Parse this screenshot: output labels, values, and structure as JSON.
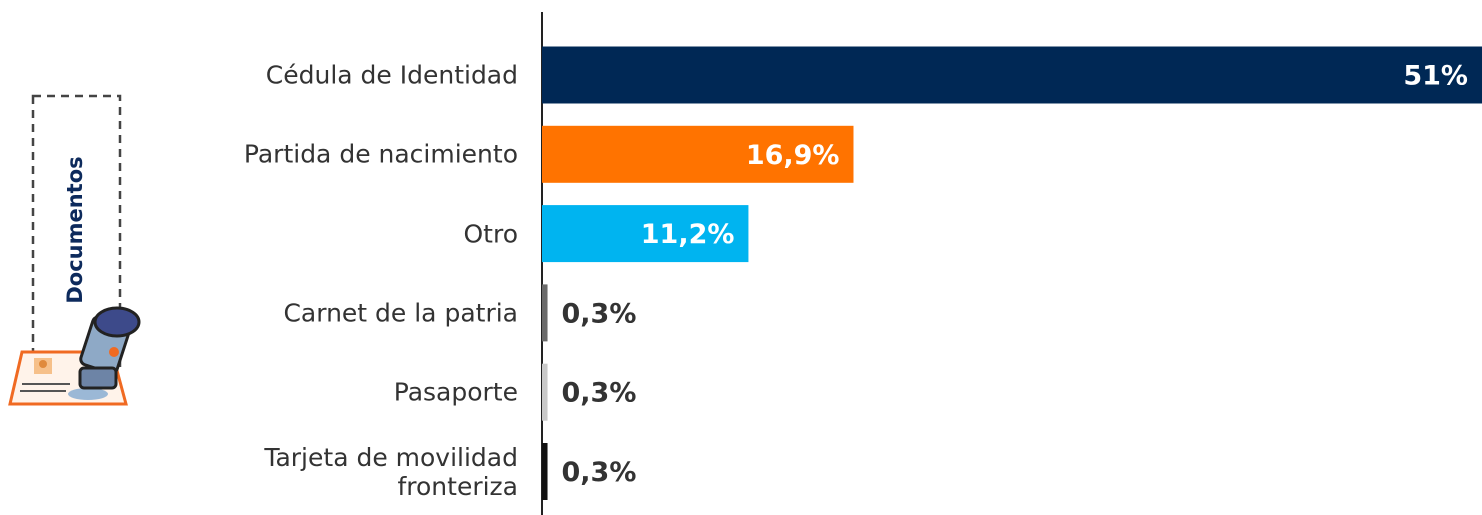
{
  "chart_data": {
    "type": "hbar",
    "side_label": "Documentos",
    "categories": [
      "Cédula de Identidad",
      "Partida de nacimiento",
      "Otro",
      "Carnet de la patria",
      "Pasaporte",
      "Tarjeta de movilidad fronteriza"
    ],
    "series": [
      {
        "colors": [
          "#002855",
          "#ff7300",
          "#00b4f0",
          "#6b6b6b",
          "#c9c9c9",
          "#111111"
        ],
        "values": [
          51,
          16.9,
          11.2,
          0.3,
          0.3,
          0.3
        ],
        "value_labels": [
          "51%",
          "16,9%",
          "11,2%",
          "0,3%",
          "0,3%",
          "0,3%"
        ]
      }
    ]
  }
}
